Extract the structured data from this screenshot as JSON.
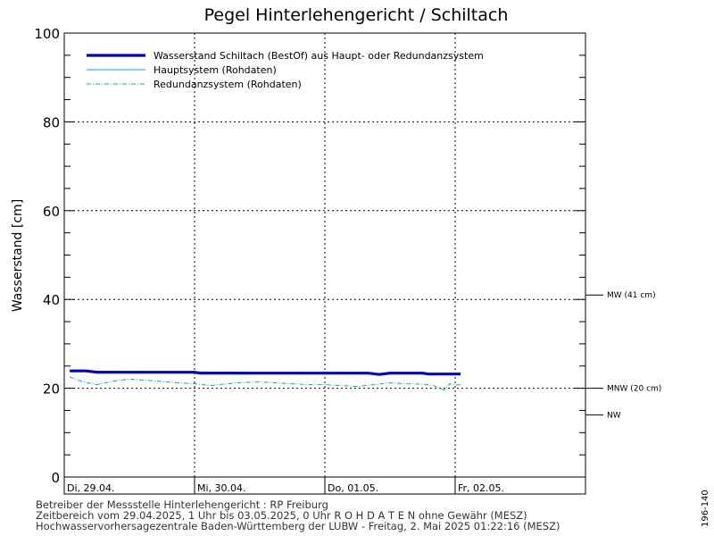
{
  "chart_data": {
    "type": "line",
    "title": "Pegel Hinterlehengericht / Schiltach",
    "ylabel": "Wasserstand [cm]",
    "xlabel": "",
    "ylim": [
      0,
      100
    ],
    "yticks": [
      0,
      20,
      40,
      60,
      80,
      100
    ],
    "grid": true,
    "legend_position": "top-left",
    "x_range": [
      "2025-04-29 00:00",
      "2025-05-03 00:00"
    ],
    "day_labels": [
      {
        "label": "Di, 29.04.",
        "at": "2025-04-29 00:00"
      },
      {
        "label": "Mi, 30.04.",
        "at": "2025-04-30 00:00"
      },
      {
        "label": "Do, 01.05.",
        "at": "2025-05-01 00:00"
      },
      {
        "label": "Fr, 02.05.",
        "at": "2025-05-02 00:00"
      }
    ],
    "reference_lines": [
      {
        "label": "MW (41 cm)",
        "value": 41,
        "line": true
      },
      {
        "label": "MNW (20 cm)",
        "value": 20,
        "line": true
      },
      {
        "label": "NW",
        "value": 14,
        "line": false
      }
    ],
    "series": [
      {
        "name": "Wasserstand Schiltach  (BestOf)  aus Haupt- oder Redundanzsystem",
        "color": "#0000cc",
        "style": "thick",
        "x": [
          "2025-04-29 01:00",
          "2025-04-29 04:00",
          "2025-04-29 06:00",
          "2025-04-29 12:00",
          "2025-04-29 18:00",
          "2025-04-30 00:00",
          "2025-04-30 01:00",
          "2025-04-30 12:00",
          "2025-05-01 00:00",
          "2025-05-01 08:00",
          "2025-05-01 10:00",
          "2025-05-01 12:00",
          "2025-05-01 18:00",
          "2025-05-01 19:00",
          "2025-05-02 01:00"
        ],
        "values": [
          23.9,
          23.9,
          23.6,
          23.6,
          23.6,
          23.6,
          23.4,
          23.4,
          23.4,
          23.4,
          23.1,
          23.4,
          23.4,
          23.2,
          23.2
        ]
      },
      {
        "name": "Hauptsystem (Rohdaten)",
        "color": "#00b0b0",
        "style": "solid",
        "x": [
          "2025-04-29 01:00",
          "2025-05-02 01:00"
        ],
        "values": [
          23.9,
          23.2
        ]
      },
      {
        "name": "Redundanzsystem (Rohdaten)",
        "color": "#00b0b0",
        "style": "dashdot",
        "x": [
          "2025-04-29 01:00",
          "2025-04-29 02:00",
          "2025-04-29 04:00",
          "2025-04-29 06:00",
          "2025-04-29 09:00",
          "2025-04-29 12:00",
          "2025-04-29 15:00",
          "2025-04-29 18:00",
          "2025-04-29 21:00",
          "2025-04-30 00:00",
          "2025-04-30 03:00",
          "2025-04-30 06:00",
          "2025-04-30 09:00",
          "2025-04-30 12:00",
          "2025-04-30 15:00",
          "2025-04-30 18:00",
          "2025-04-30 21:00",
          "2025-05-01 00:00",
          "2025-05-01 03:00",
          "2025-05-01 06:00",
          "2025-05-01 09:00",
          "2025-05-01 12:00",
          "2025-05-01 15:00",
          "2025-05-01 18:00",
          "2025-05-01 20:00",
          "2025-05-01 22:00",
          "2025-05-01 23:00",
          "2025-05-02 00:00",
          "2025-05-02 01:00"
        ],
        "values": [
          22.6,
          22.0,
          21.3,
          20.8,
          21.6,
          22.1,
          21.8,
          21.5,
          21.2,
          21.0,
          20.6,
          21.0,
          21.3,
          21.4,
          21.2,
          21.0,
          20.8,
          20.8,
          20.6,
          20.4,
          20.8,
          21.2,
          21.0,
          20.9,
          20.6,
          19.6,
          21.0,
          20.7,
          20.8
        ]
      }
    ]
  },
  "footer": {
    "line1": "Betreiber der Messstelle Hinterlehengericht : RP Freiburg",
    "line2": "Zeitbereich vom 29.04.2025, 1 Uhr bis 03.05.2025, 0 Uhr    R O H D A T E N  ohne Gewähr (MESZ)",
    "line3": "Hochwasservorhersagezentrale Baden-Württemberg der LUBW - Freitag, 2. Mai 2025 01:22:16 (MESZ)"
  },
  "side_code": "196-140"
}
